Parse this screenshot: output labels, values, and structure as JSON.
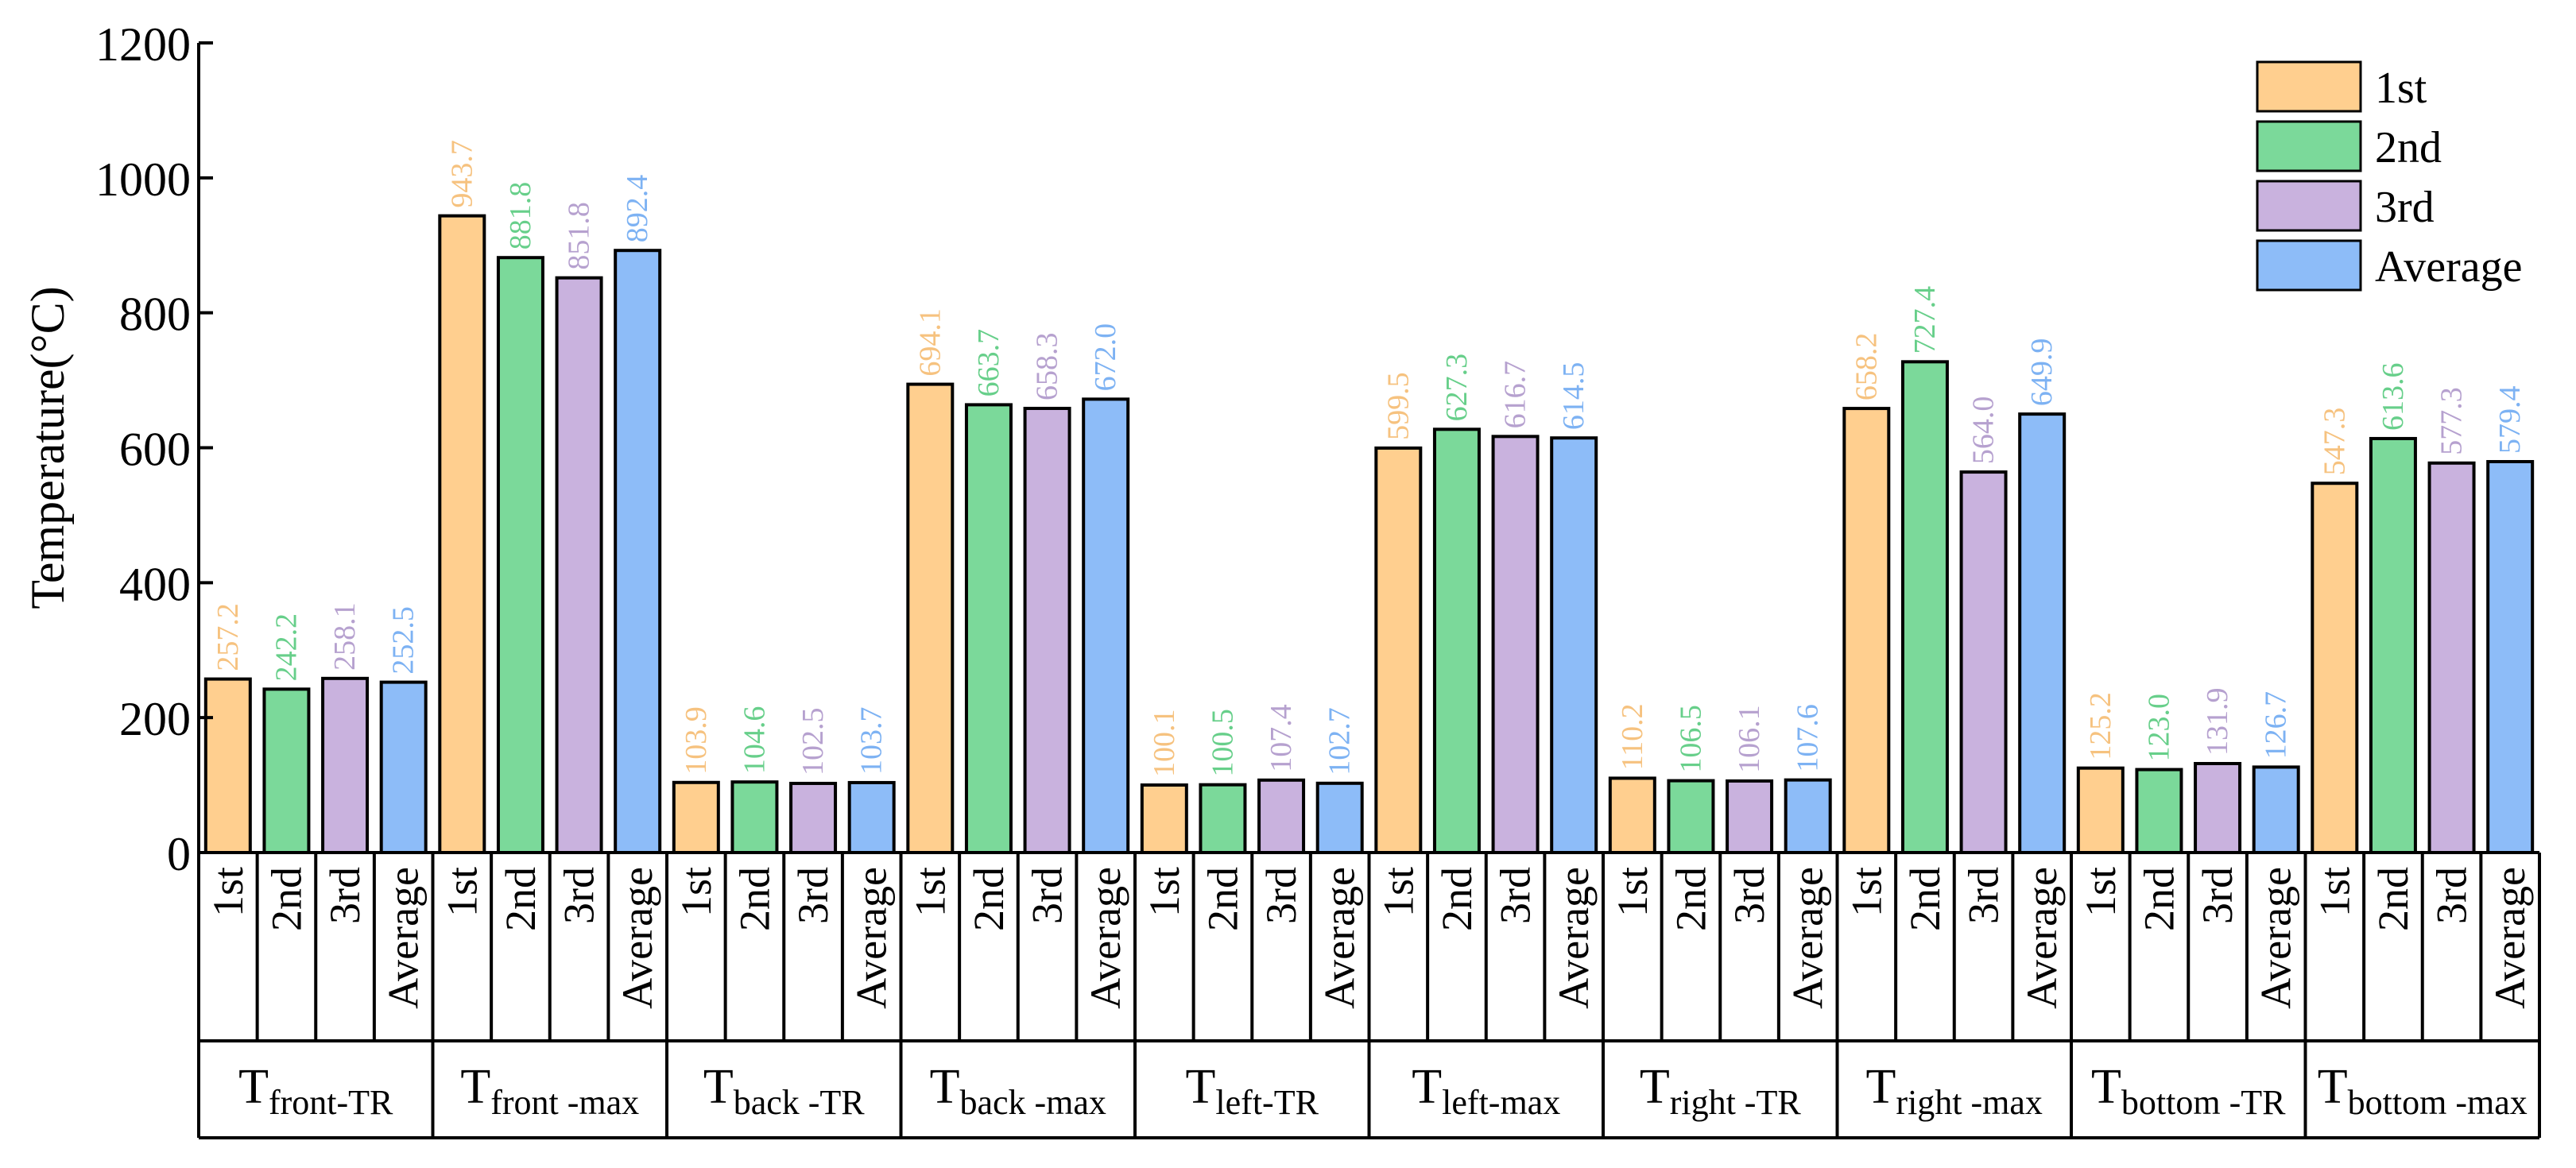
{
  "chart_data": {
    "type": "bar",
    "ylabel": "Temperature(°C)",
    "ylim": [
      0,
      1200
    ],
    "yticks": [
      0,
      200,
      400,
      600,
      800,
      1000,
      1200
    ],
    "grid": false,
    "legend_position": "top-right",
    "series": [
      {
        "name": "1st",
        "color": "#FFCF8F"
      },
      {
        "name": "2nd",
        "color": "#7BD99A"
      },
      {
        "name": "3rd",
        "color": "#C9B2DE"
      },
      {
        "name": "Average",
        "color": "#8DBCF8"
      }
    ],
    "label_colors": [
      "#F6C27F",
      "#67CF8A",
      "#B6A1CF",
      "#7DB2F3"
    ],
    "groups": [
      {
        "base": "T",
        "sub": "front-TR",
        "values": [
          257.2,
          242.2,
          258.1,
          252.5
        ],
        "labels": [
          "257.2",
          "242.2",
          "258.1",
          "252.5"
        ]
      },
      {
        "base": "T",
        "sub": "front -max",
        "values": [
          943.7,
          881.8,
          851.8,
          892.4
        ],
        "labels": [
          "943.7",
          "881.8",
          "851.8",
          "892.4"
        ]
      },
      {
        "base": "T",
        "sub": "back -TR",
        "values": [
          103.9,
          104.6,
          102.5,
          103.7
        ],
        "labels": [
          "103.9",
          "104.6",
          "102.5",
          "103.7"
        ]
      },
      {
        "base": "T",
        "sub": "back -max",
        "values": [
          694.1,
          663.7,
          658.3,
          672.0
        ],
        "labels": [
          "694.1",
          "663.7",
          "658.3",
          "672.0"
        ]
      },
      {
        "base": "T",
        "sub": "left-TR",
        "values": [
          100.1,
          100.5,
          107.4,
          102.7
        ],
        "labels": [
          "100.1",
          "100.5",
          "107.4",
          "102.7"
        ]
      },
      {
        "base": "T",
        "sub": "left-max",
        "values": [
          599.5,
          627.3,
          616.7,
          614.5
        ],
        "labels": [
          "599.5",
          "627.3",
          "616.7",
          "614.5"
        ]
      },
      {
        "base": "T",
        "sub": "right -TR",
        "values": [
          110.2,
          106.5,
          106.1,
          107.6
        ],
        "labels": [
          "110.2",
          "106.5",
          "106.1",
          "107.6"
        ]
      },
      {
        "base": "T",
        "sub": "right -max",
        "values": [
          658.2,
          727.4,
          564.0,
          649.9
        ],
        "labels": [
          "658.2",
          "727.4",
          "564.0",
          "649.9"
        ]
      },
      {
        "base": "T",
        "sub": "bottom -TR",
        "values": [
          125.2,
          123.0,
          131.9,
          126.7
        ],
        "labels": [
          "125.2",
          "123.0",
          "131.9",
          "126.7"
        ]
      },
      {
        "base": "T",
        "sub": "bottom -max",
        "values": [
          547.3,
          613.6,
          577.3,
          579.4
        ],
        "labels": [
          "547.3",
          "613.6",
          "577.3",
          "579.4"
        ]
      }
    ]
  }
}
